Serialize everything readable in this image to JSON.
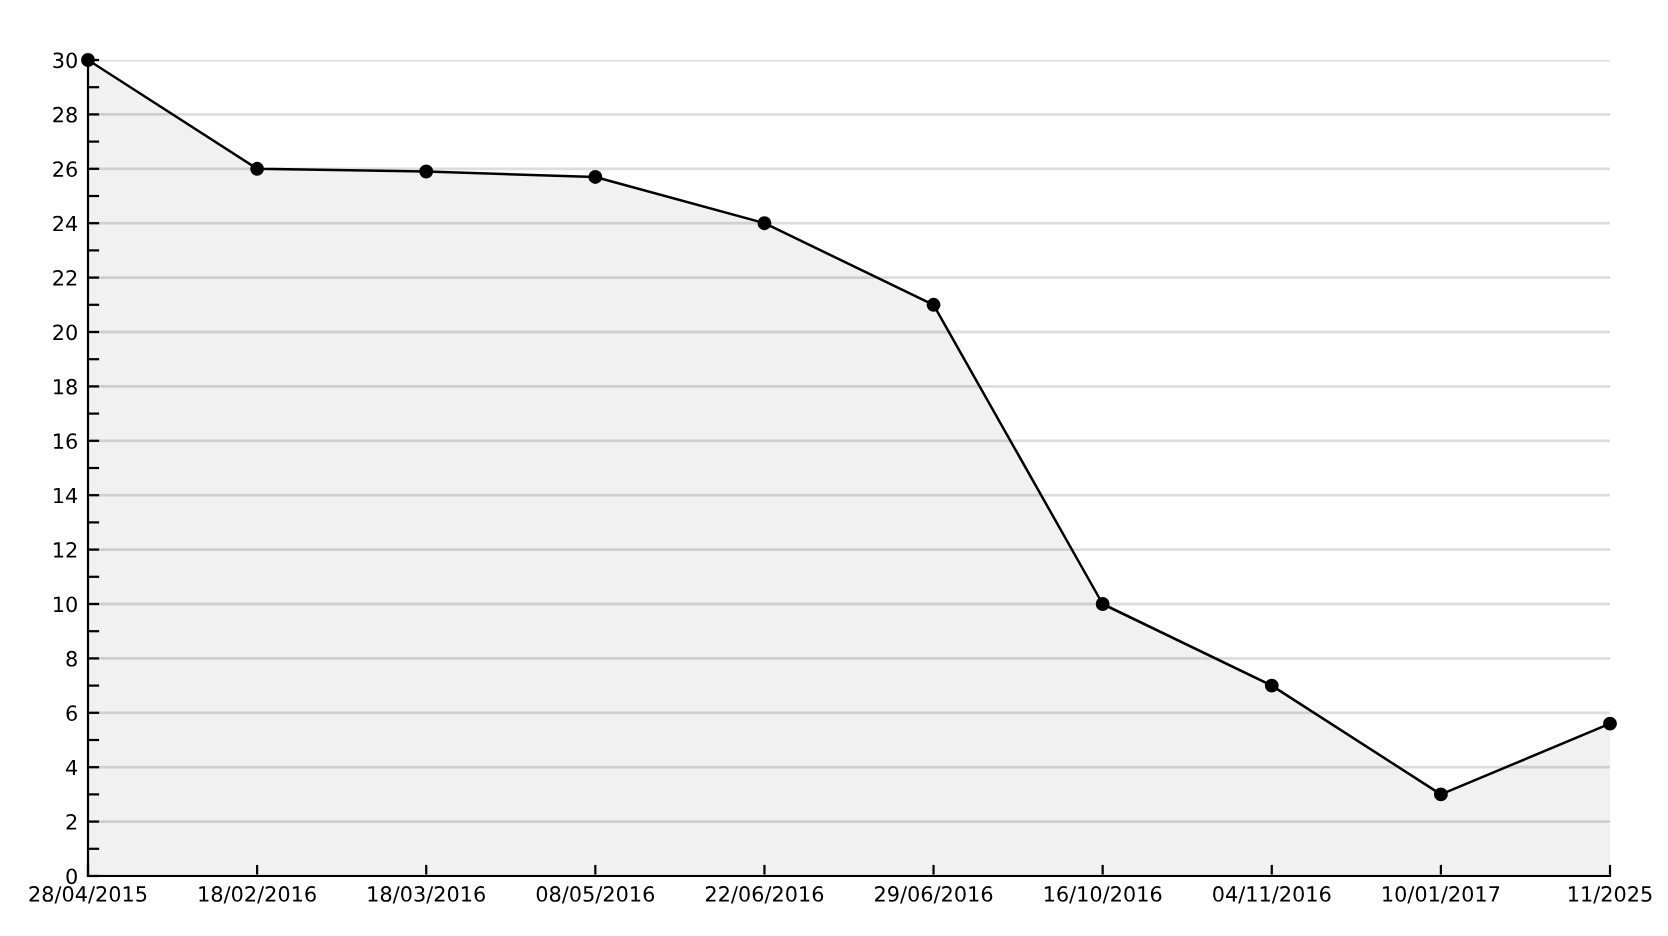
{
  "chart_data": {
    "type": "area",
    "categories": [
      "28/04/2015",
      "18/02/2016",
      "18/03/2016",
      "08/05/2016",
      "22/06/2016",
      "29/06/2016",
      "16/10/2016",
      "04/11/2016",
      "10/01/2017",
      "11/2025"
    ],
    "series": [
      {
        "color": "#000000",
        "values": [
          30,
          26,
          25.9,
          25.7,
          24,
          21,
          10,
          7,
          3,
          5.6
        ]
      }
    ],
    "ylim": [
      0,
      30
    ],
    "yticks": [
      0,
      {
        "value": 1,
        "label": null
      },
      2,
      {
        "value": 3,
        "label": null
      },
      4,
      {
        "value": 5,
        "label": null
      },
      6,
      {
        "value": 7,
        "label": null
      },
      8,
      {
        "value": 9,
        "label": null
      },
      10,
      {
        "value": 11,
        "label": null
      },
      12,
      {
        "value": 13,
        "label": null
      },
      14,
      {
        "value": 15,
        "label": null
      },
      16,
      {
        "value": 17,
        "label": null
      },
      18,
      {
        "value": 19,
        "label": null
      },
      20,
      {
        "value": 21,
        "label": null
      },
      22,
      {
        "value": 23,
        "label": null
      },
      24,
      {
        "value": 25,
        "label": null
      },
      26,
      {
        "value": 27,
        "label": null
      },
      28,
      {
        "value": 29,
        "label": null
      },
      30
    ],
    "grid": "y",
    "marker": "circle",
    "line_style": "solid"
  }
}
